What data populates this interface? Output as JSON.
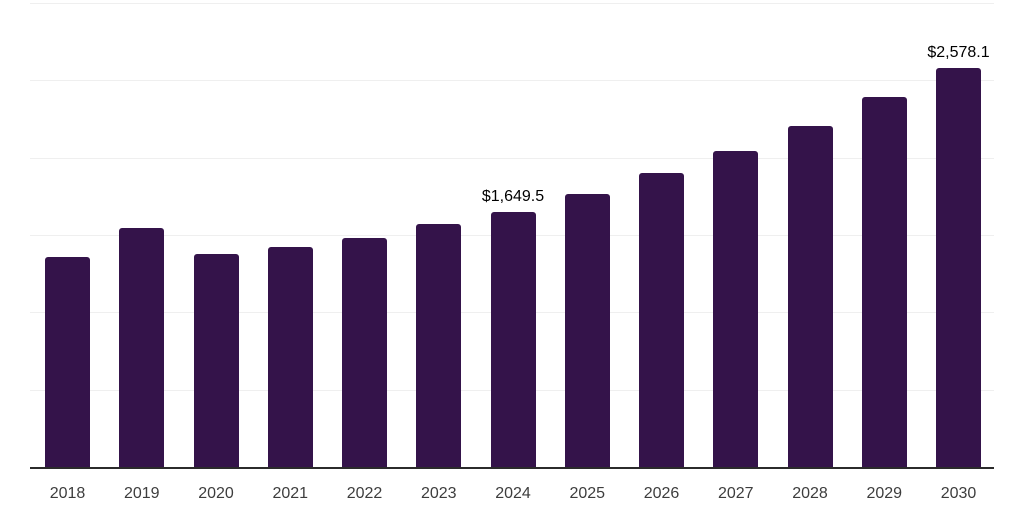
{
  "chart_data": {
    "type": "bar",
    "title": "",
    "xlabel": "",
    "ylabel": "",
    "categories": [
      "2018",
      "2019",
      "2020",
      "2021",
      "2022",
      "2023",
      "2024",
      "2025",
      "2026",
      "2027",
      "2028",
      "2029",
      "2030"
    ],
    "values": [
      1360,
      1545,
      1380,
      1420,
      1480,
      1570,
      1649.5,
      1765,
      1900,
      2040,
      2205,
      2390,
      2578.1
    ],
    "data_labels": [
      "",
      "",
      "",
      "",
      "",
      "",
      "$1,649.5",
      "",
      "",
      "",
      "",
      "",
      "$2,578.1"
    ],
    "ylim": [
      0,
      3000
    ],
    "gridline_step": 500,
    "grid": "horizontal",
    "legend": "none",
    "y_axis_tick_labels_visible": false,
    "colors": {
      "bar": "#34134A",
      "axis_line": "#2b2b2b",
      "gridline": "#efefef",
      "tick_label": "#3d3d3d",
      "data_label": "#000000",
      "background": "#ffffff"
    }
  }
}
